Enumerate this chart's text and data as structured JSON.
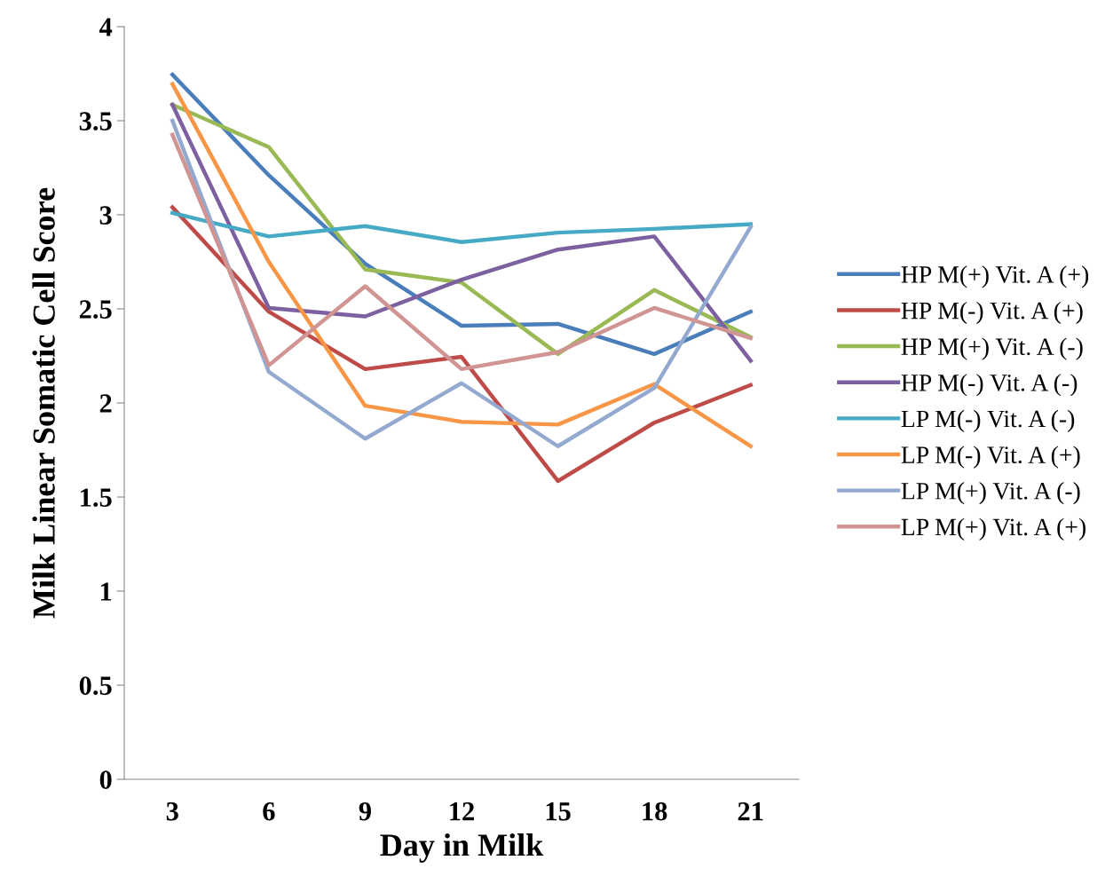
{
  "chart_data": {
    "type": "line",
    "xlabel": "Day in Milk",
    "ylabel": "Milk Linear Somatic Cell Score",
    "categories": [
      "3",
      "6",
      "9",
      "12",
      "15",
      "18",
      "21"
    ],
    "ylim": [
      0,
      4
    ],
    "yticks": [
      0,
      0.5,
      1,
      1.5,
      2,
      2.5,
      3,
      3.5,
      4
    ],
    "grid": false,
    "legend": "right",
    "marker": "none",
    "line_style": "solid",
    "series": [
      {
        "name": "HP M(+) Vit. A (+)",
        "color": "#4a7ebb",
        "values": [
          3.745,
          3.21,
          2.74,
          2.41,
          2.42,
          2.26,
          2.485
        ]
      },
      {
        "name": "HP M(-) Vit. A (+)",
        "color": "#be4b48",
        "values": [
          3.04,
          2.485,
          2.18,
          2.245,
          1.585,
          1.895,
          2.095
        ]
      },
      {
        "name": "HP M(+) Vit. A (-)",
        "color": "#98b954",
        "values": [
          3.585,
          3.36,
          2.71,
          2.64,
          2.26,
          2.6,
          2.35
        ]
      },
      {
        "name": "HP M(-) Vit. A (-)",
        "color": "#7d60a0",
        "values": [
          3.585,
          2.505,
          2.46,
          2.655,
          2.815,
          2.885,
          2.225
        ]
      },
      {
        "name": "LP M(-) Vit. A (-)",
        "color": "#46aac5",
        "values": [
          3.01,
          2.885,
          2.94,
          2.855,
          2.905,
          2.925,
          2.95
        ]
      },
      {
        "name": "LP M(-) Vit. A (+)",
        "color": "#f79646",
        "values": [
          3.695,
          2.75,
          1.985,
          1.9,
          1.885,
          2.1,
          1.77
        ]
      },
      {
        "name": "LP M(+) Vit. A (-)",
        "color": "#93a9cf",
        "values": [
          3.5,
          2.165,
          1.81,
          2.105,
          1.77,
          2.08,
          2.935
        ]
      },
      {
        "name": "LP M(+) Vit. A (+)",
        "color": "#d09493",
        "values": [
          3.425,
          2.2,
          2.62,
          2.18,
          2.27,
          2.505,
          2.345
        ]
      }
    ]
  }
}
